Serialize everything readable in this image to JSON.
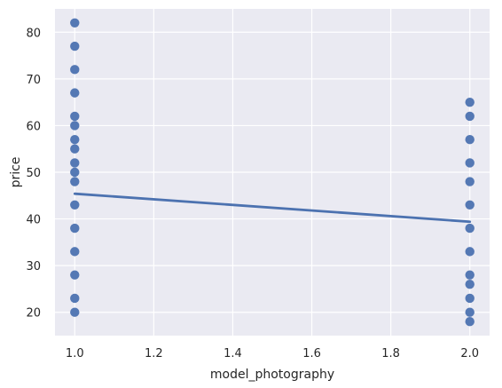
{
  "chart_data": {
    "type": "scatter",
    "title": "",
    "xlabel": "model_photography",
    "ylabel": "price",
    "xlim": [
      0.95,
      2.05
    ],
    "ylim": [
      15,
      85
    ],
    "x_ticks": [
      "1.0",
      "1.2",
      "1.4",
      "1.6",
      "1.8",
      "2.0"
    ],
    "y_ticks": [
      "20",
      "30",
      "40",
      "50",
      "60",
      "70",
      "80"
    ],
    "grid": true,
    "background": "#EAEAF2",
    "grid_color": "#FFFFFF",
    "point_color": "#4C72B0",
    "line_color": "#4C72B0",
    "points": [
      {
        "x": 1.0,
        "y": 82
      },
      {
        "x": 1.0,
        "y": 77
      },
      {
        "x": 1.0,
        "y": 72
      },
      {
        "x": 1.0,
        "y": 67
      },
      {
        "x": 1.0,
        "y": 62
      },
      {
        "x": 1.0,
        "y": 60
      },
      {
        "x": 1.0,
        "y": 57
      },
      {
        "x": 1.0,
        "y": 55
      },
      {
        "x": 1.0,
        "y": 52
      },
      {
        "x": 1.0,
        "y": 50
      },
      {
        "x": 1.0,
        "y": 48
      },
      {
        "x": 1.0,
        "y": 43
      },
      {
        "x": 1.0,
        "y": 38
      },
      {
        "x": 1.0,
        "y": 33
      },
      {
        "x": 1.0,
        "y": 28
      },
      {
        "x": 1.0,
        "y": 23
      },
      {
        "x": 1.0,
        "y": 20
      },
      {
        "x": 2.0,
        "y": 65
      },
      {
        "x": 2.0,
        "y": 62
      },
      {
        "x": 2.0,
        "y": 57
      },
      {
        "x": 2.0,
        "y": 52
      },
      {
        "x": 2.0,
        "y": 48
      },
      {
        "x": 2.0,
        "y": 43
      },
      {
        "x": 2.0,
        "y": 38
      },
      {
        "x": 2.0,
        "y": 33
      },
      {
        "x": 2.0,
        "y": 28
      },
      {
        "x": 2.0,
        "y": 26
      },
      {
        "x": 2.0,
        "y": 23
      },
      {
        "x": 2.0,
        "y": 20
      },
      {
        "x": 2.0,
        "y": 18
      }
    ],
    "regression_line": {
      "x": [
        1.0,
        2.0
      ],
      "y": [
        45.4,
        39.4
      ]
    }
  }
}
